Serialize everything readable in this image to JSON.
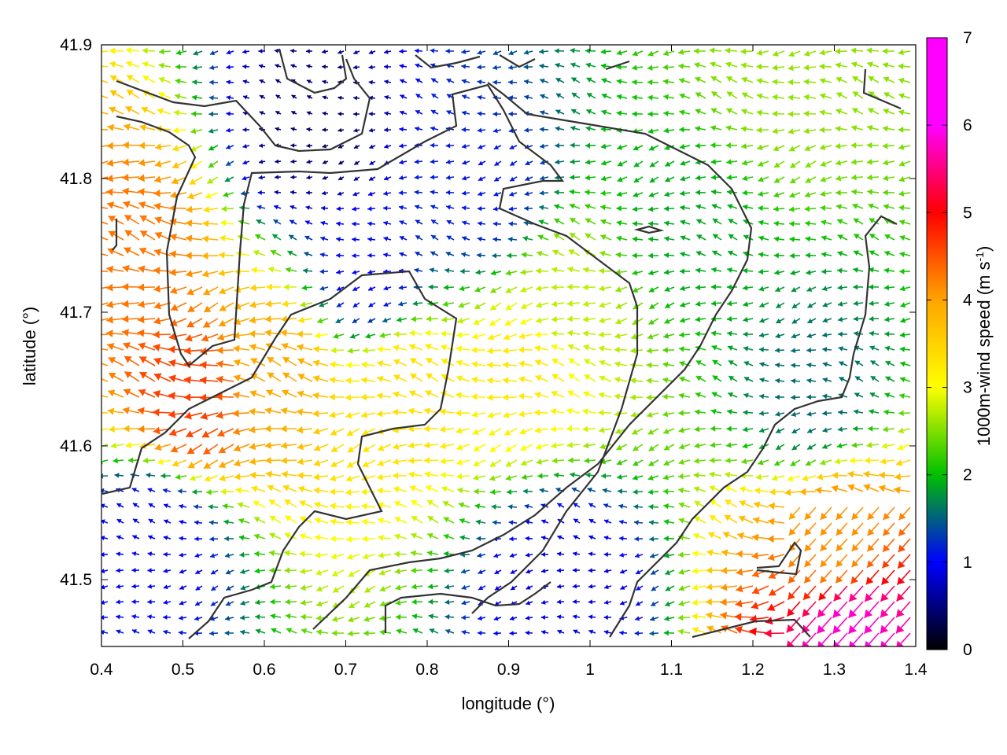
{
  "chart_data": {
    "type": "vector-field",
    "xlabel": "longitude (°)",
    "ylabel": "latitude (°)",
    "xlim": [
      0.4,
      1.4
    ],
    "ylim": [
      41.45,
      41.9
    ],
    "xticks": [
      "0.4",
      "0.5",
      "0.6",
      "0.7",
      "0.8",
      "0.9",
      "1",
      "1.1",
      "1.2",
      "1.3",
      "1.4"
    ],
    "yticks": [
      "41.5",
      "41.6",
      "41.7",
      "41.8",
      "41.9"
    ],
    "colorbar": {
      "label_main": "1000m-wind speed (m s",
      "label_sup": "-1",
      "label_end": ")",
      "range": [
        0,
        7
      ],
      "ticks": [
        "0",
        "1",
        "2",
        "3",
        "4",
        "5",
        "6",
        "7"
      ],
      "palette": [
        "#000000",
        "#0000ff",
        "#00c000",
        "#ffff00",
        "#ffa500",
        "#ff0000",
        "#ff00ff"
      ]
    },
    "grid": false,
    "field_description": "wind vectors colored by speed",
    "speed_regions": [
      {
        "lon": 0.52,
        "lat": 41.64,
        "speed": 5.4
      },
      {
        "lon": 0.45,
        "lat": 41.75,
        "speed": 5.0
      },
      {
        "lon": 0.62,
        "lat": 41.66,
        "speed": 4.6
      },
      {
        "lon": 0.78,
        "lat": 41.64,
        "speed": 3.9
      },
      {
        "lon": 0.93,
        "lat": 41.66,
        "speed": 3.8
      },
      {
        "lon": 0.98,
        "lat": 41.7,
        "speed": 3.2
      },
      {
        "lon": 1.25,
        "lat": 41.88,
        "speed": 3.0
      },
      {
        "lon": 0.66,
        "lat": 41.83,
        "speed": 0.5
      },
      {
        "lon": 0.73,
        "lat": 41.73,
        "speed": 1.2
      },
      {
        "lon": 0.97,
        "lat": 41.5,
        "speed": 1.0
      },
      {
        "lon": 1.33,
        "lat": 41.47,
        "speed": 6.8
      },
      {
        "lon": 1.31,
        "lat": 41.53,
        "speed": 4.8
      },
      {
        "lon": 1.12,
        "lat": 41.76,
        "speed": 2.2
      },
      {
        "lon": 1.28,
        "lat": 41.64,
        "speed": 1.8
      },
      {
        "lon": 0.47,
        "lat": 41.53,
        "speed": 1.1
      },
      {
        "lon": 0.87,
        "lat": 41.79,
        "speed": 1.3
      }
    ]
  }
}
